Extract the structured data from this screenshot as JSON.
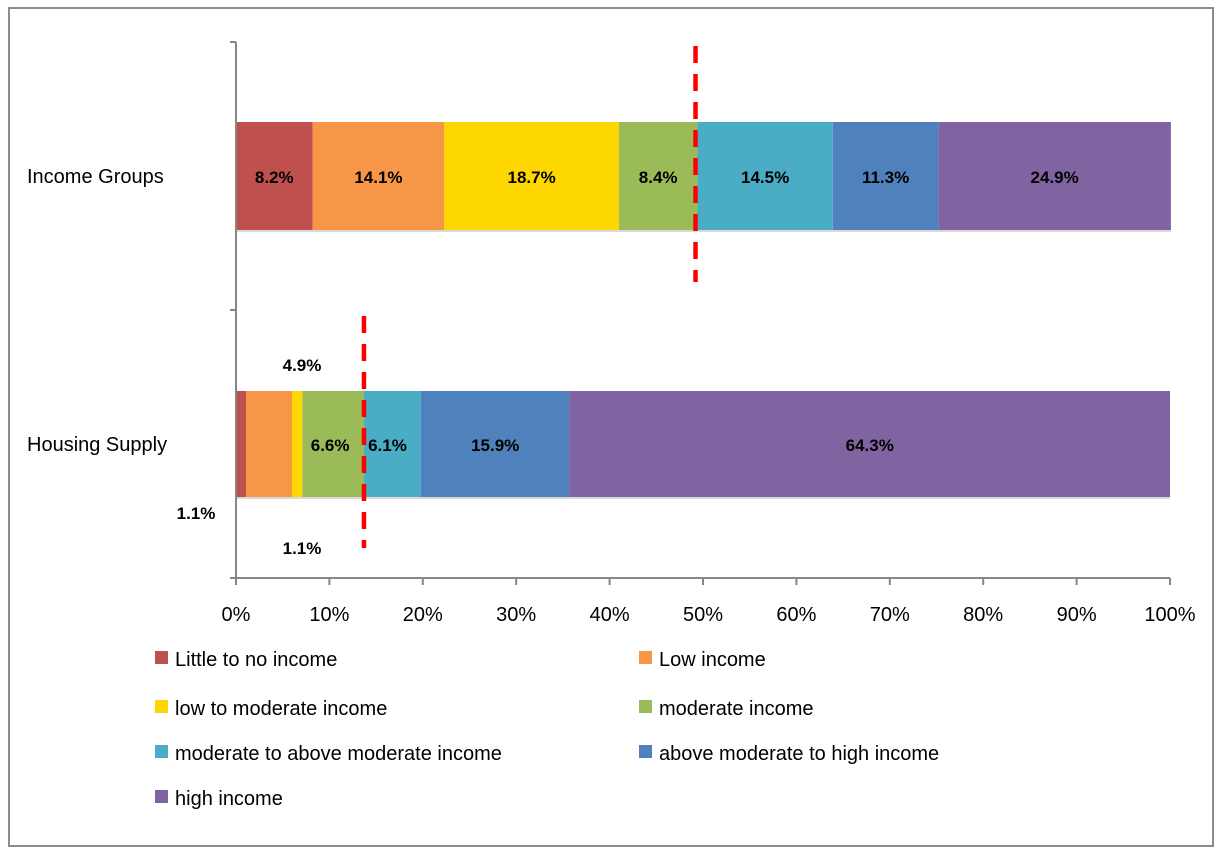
{
  "chart_data": {
    "type": "bar",
    "orientation": "horizontal",
    "stacked": true,
    "categories": [
      "Income Groups",
      "Housing Supply"
    ],
    "series": [
      {
        "name": "Little to no income",
        "color": "#C0504D",
        "values": [
          8.2,
          1.1
        ],
        "labels": [
          "8.2%",
          "1.1%"
        ]
      },
      {
        "name": "Low income",
        "color": "#F79646",
        "values": [
          14.1,
          4.9
        ],
        "labels": [
          "14.1%",
          "4.9%"
        ]
      },
      {
        "name": "low to moderate income",
        "color": "#FFD700",
        "values": [
          18.7,
          1.1
        ],
        "labels": [
          "18.7%",
          "1.1%"
        ]
      },
      {
        "name": "moderate income",
        "color": "#9BBB59",
        "values": [
          8.4,
          6.6
        ],
        "labels": [
          "8.4%",
          "6.6%"
        ]
      },
      {
        "name": "moderate to above moderate income",
        "color": "#4BACC6",
        "values": [
          14.5,
          6.1
        ],
        "labels": [
          "14.5%",
          "6.1%"
        ]
      },
      {
        "name": "above moderate to high income",
        "color": "#4F81BD",
        "values": [
          11.3,
          15.9
        ],
        "labels": [
          "11.3%",
          "15.9%"
        ]
      },
      {
        "name": "high income",
        "color": "#8064A2",
        "values": [
          24.9,
          64.3
        ],
        "labels": [
          "24.9%",
          "64.3%"
        ]
      }
    ],
    "xlim": [
      0,
      100
    ],
    "x_ticks": [
      "0%",
      "10%",
      "20%",
      "30%",
      "40%",
      "50%",
      "60%",
      "70%",
      "80%",
      "90%",
      "100%"
    ],
    "reference_lines": [
      {
        "category": "Income Groups",
        "x": 49.2,
        "color": "#FF0000",
        "style": "dashed"
      },
      {
        "category": "Housing Supply",
        "x": 13.7,
        "color": "#FF0000",
        "style": "dashed"
      }
    ],
    "legend_position": "bottom",
    "grid": false,
    "title": "",
    "xlabel": "",
    "ylabel": ""
  }
}
